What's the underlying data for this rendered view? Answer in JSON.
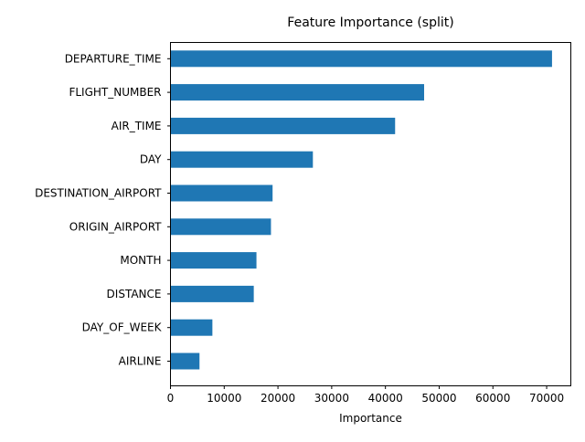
{
  "chart_data": {
    "type": "bar",
    "orientation": "horizontal",
    "title": "Feature Importance (split)",
    "xlabel": "Importance",
    "ylabel": "",
    "categories": [
      "DEPARTURE_TIME",
      "FLIGHT_NUMBER",
      "AIR_TIME",
      "DAY",
      "DESTINATION_AIRPORT",
      "ORIGIN_AIRPORT",
      "MONTH",
      "DISTANCE",
      "DAY_OF_WEEK",
      "AIRLINE"
    ],
    "values": [
      71000,
      47200,
      41800,
      26500,
      19000,
      18700,
      16000,
      15500,
      7800,
      5400
    ],
    "xlim": [
      0,
      74500
    ],
    "xticks": [
      0,
      10000,
      20000,
      30000,
      40000,
      50000,
      60000,
      70000
    ],
    "bar_color": "#1f77b4",
    "grid": false,
    "legend": false
  }
}
